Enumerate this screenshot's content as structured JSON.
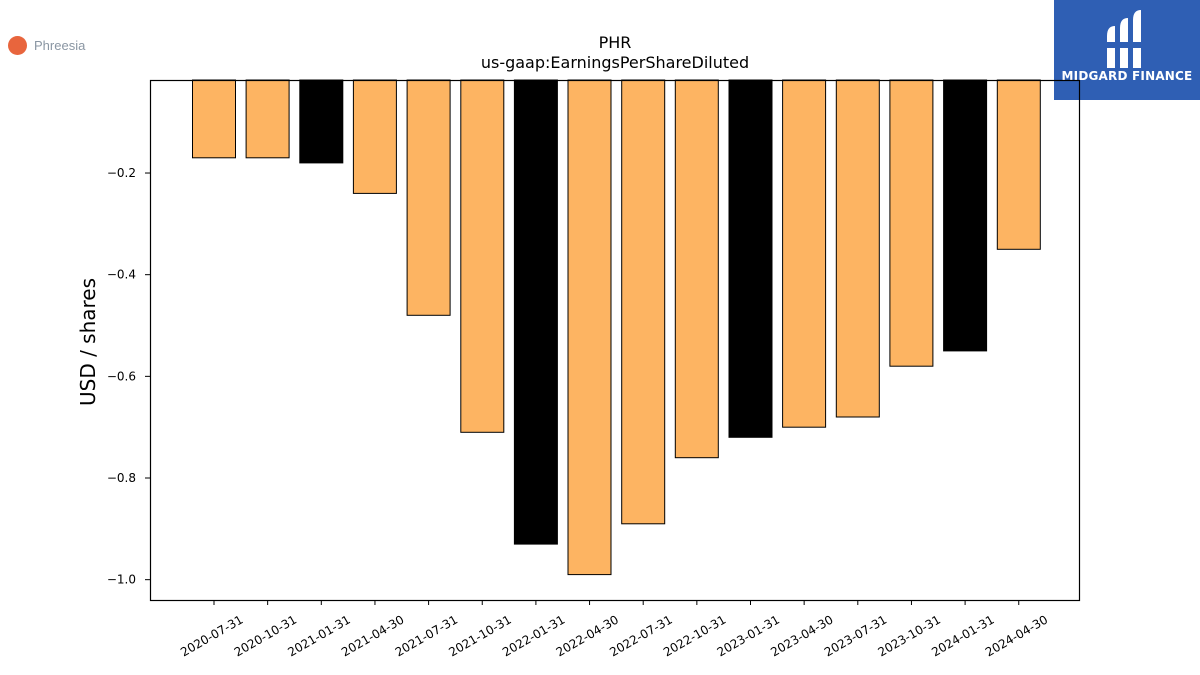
{
  "company": {
    "name": "Phreesia",
    "dot_color": "#e8653d"
  },
  "brand": {
    "name": "MIDGARD FINANCE",
    "color": "#2f5fb4"
  },
  "colors": {
    "primary": "#fdb462",
    "secondary": "#000000",
    "edge": "#000000"
  },
  "chart_data": {
    "type": "bar",
    "title": "PHR",
    "subtitle": "us-gaap:EarningsPerShareDiluted",
    "xlabel": "",
    "ylabel": "USD / shares",
    "categories": [
      "2020-07-31",
      "2020-10-31",
      "2021-01-31",
      "2021-04-30",
      "2021-07-31",
      "2021-10-31",
      "2022-01-31",
      "2022-04-30",
      "2022-07-31",
      "2022-10-31",
      "2023-01-31",
      "2023-04-30",
      "2023-07-31",
      "2023-10-31",
      "2024-01-31",
      "2024-04-30"
    ],
    "values": [
      -0.17,
      -0.17,
      -0.18,
      -0.24,
      -0.48,
      -0.71,
      -0.93,
      -0.99,
      -0.89,
      -0.76,
      -0.72,
      -0.7,
      -0.68,
      -0.58,
      -0.55,
      -0.35
    ],
    "highlighted": [
      "2021-01-31",
      "2022-01-31",
      "2023-01-31",
      "2024-01-31"
    ],
    "ylim": [
      -1.04,
      -0.017
    ],
    "yticks": [
      -0.2,
      -0.4,
      -0.6,
      -0.8,
      -1.0
    ],
    "ytick_labels": [
      "−0.2",
      "−0.4",
      "−0.6",
      "−0.8",
      "−1.0"
    ],
    "grid": false,
    "legend": "none"
  }
}
